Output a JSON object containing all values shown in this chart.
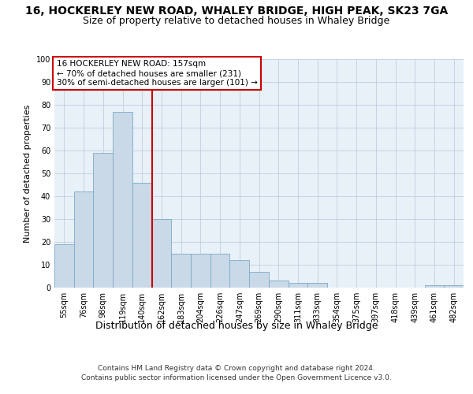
{
  "title": "16, HOCKERLEY NEW ROAD, WHALEY BRIDGE, HIGH PEAK, SK23 7GA",
  "subtitle": "Size of property relative to detached houses in Whaley Bridge",
  "xlabel": "Distribution of detached houses by size in Whaley Bridge",
  "ylabel": "Number of detached properties",
  "categories": [
    "55sqm",
    "76sqm",
    "98sqm",
    "119sqm",
    "140sqm",
    "162sqm",
    "183sqm",
    "204sqm",
    "226sqm",
    "247sqm",
    "269sqm",
    "290sqm",
    "311sqm",
    "333sqm",
    "354sqm",
    "375sqm",
    "397sqm",
    "418sqm",
    "439sqm",
    "461sqm",
    "482sqm"
  ],
  "values": [
    19,
    42,
    59,
    77,
    46,
    30,
    15,
    15,
    15,
    12,
    7,
    3,
    2,
    2,
    0,
    0,
    0,
    0,
    0,
    1,
    1
  ],
  "bar_color": "#c9d9e8",
  "bar_edge_color": "#7aaac8",
  "vline_pos": 4.5,
  "vline_color": "#cc0000",
  "annotation_lines": [
    "16 HOCKERLEY NEW ROAD: 157sqm",
    "← 70% of detached houses are smaller (231)",
    "30% of semi-detached houses are larger (101) →"
  ],
  "annotation_box_color": "#cc0000",
  "annotation_text_color": "#000000",
  "ylim": [
    0,
    100
  ],
  "yticks": [
    0,
    10,
    20,
    30,
    40,
    50,
    60,
    70,
    80,
    90,
    100
  ],
  "footer_line1": "Contains HM Land Registry data © Crown copyright and database right 2024.",
  "footer_line2": "Contains public sector information licensed under the Open Government Licence v3.0.",
  "background_color": "#ffffff",
  "axes_background": "#e8f0f8",
  "grid_color": "#c0cfe0",
  "title_fontsize": 10,
  "subtitle_fontsize": 9,
  "xlabel_fontsize": 9,
  "ylabel_fontsize": 8,
  "tick_fontsize": 7,
  "annotation_fontsize": 7.5,
  "footer_fontsize": 6.5
}
